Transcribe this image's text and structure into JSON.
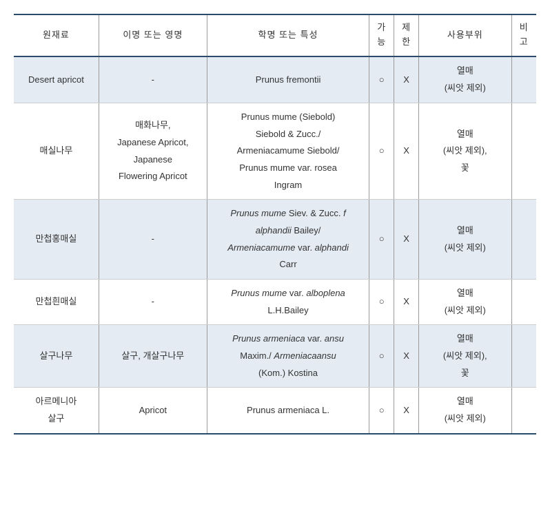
{
  "table": {
    "headers": {
      "raw": "원재료",
      "alias": "이명 또는 영명",
      "scientific": "학명 또는 특성",
      "possible": "가\n능",
      "restrict": "제\n한",
      "part": "사용부위",
      "note": "비\n고"
    },
    "rows": [
      {
        "raw": "Desert apricot",
        "alias": "-",
        "scientific_html": "Prunus fremontii",
        "possible": "○",
        "restrict": "X",
        "part": "열매\n(씨앗 제외)",
        "note": ""
      },
      {
        "raw": "매실나무",
        "alias": "매화나무,\nJapanese Apricot,\nJapanese\nFlowering Apricot",
        "scientific_html": "Prunus mume (Siebold)\nSiebold & Zucc./\nArmeniacamume Siebold/\nPrunus mume var. rosea\nIngram",
        "possible": "○",
        "restrict": "X",
        "part": "열매\n(씨앗 제외),\n꽃",
        "note": ""
      },
      {
        "raw": "만첩홍매실",
        "alias": "-",
        "scientific_html": "<span class=\"italic\">Prunus mume</span> Siev. & Zucc. <span class=\"italic\">f\nalphandii</span> Bailey/\n<span class=\"italic\">Armeniacamume</span> var. <span class=\"italic\">alphandi</span>\nCarr",
        "possible": "○",
        "restrict": "X",
        "part": "열매\n(씨앗 제외)",
        "note": ""
      },
      {
        "raw": "만첩흰매실",
        "alias": "-",
        "scientific_html": "<span class=\"italic\">Prunus mume</span> var. <span class=\"italic\">alboplena</span>\nL.H.Bailey",
        "possible": "○",
        "restrict": "X",
        "part": "열매\n(씨앗 제외)",
        "note": ""
      },
      {
        "raw": "살구나무",
        "alias": "살구, 개살구나무",
        "scientific_html": "<span class=\"italic\">Prunus armeniaca</span> var. <span class=\"italic\">ansu</span>\nMaxim./ <span class=\"italic\">Armeniacaansu</span>\n(Kom.) Kostina",
        "possible": "○",
        "restrict": "X",
        "part": "열매\n(씨앗 제외),\n꽃",
        "note": ""
      },
      {
        "raw": "아르메니아\n살구",
        "alias": "Apricot",
        "scientific_html": "Prunus armeniaca L.",
        "possible": "○",
        "restrict": "X",
        "part": "열매\n(씨앗 제외)",
        "note": ""
      }
    ]
  }
}
